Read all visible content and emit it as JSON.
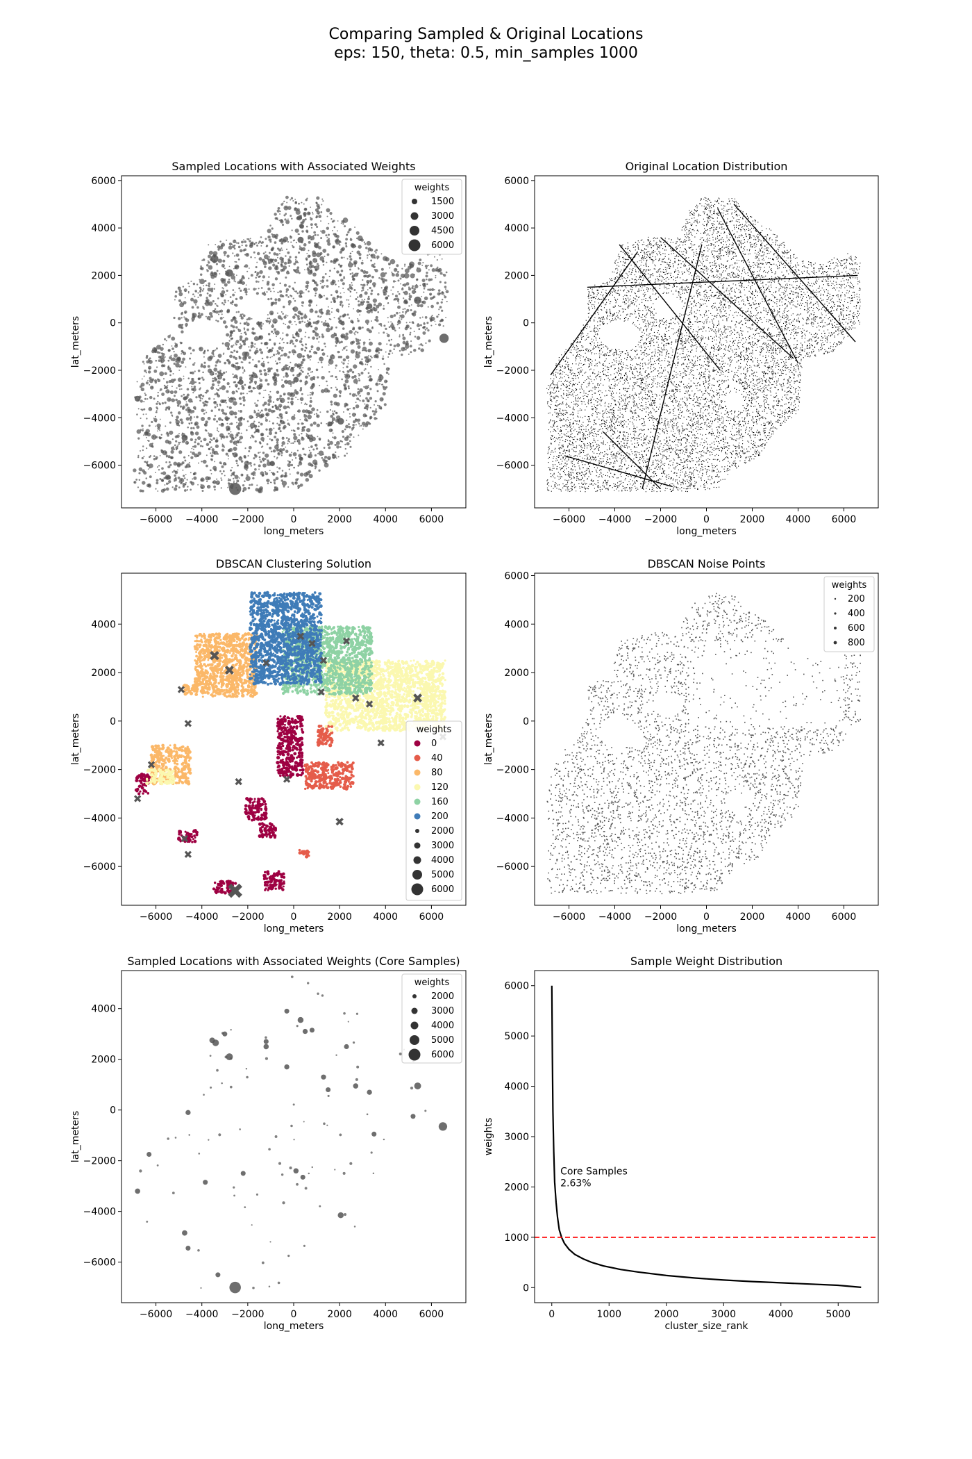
{
  "figure": {
    "title_line1": "Comparing Sampled & Original Locations",
    "title_line2": "eps: 150, theta: 0.5, min_samples 1000"
  },
  "chart_data": [
    {
      "id": "sampled",
      "type": "scatter",
      "title": "Sampled Locations with Associated Weights",
      "xlabel": "long_meters",
      "ylabel": "lat_meters",
      "xlim": [
        -7500,
        7500
      ],
      "ylim": [
        -7800,
        6200
      ],
      "xticks": [
        -6000,
        -4000,
        -2000,
        0,
        2000,
        4000,
        6000
      ],
      "yticks": [
        -6000,
        -4000,
        -2000,
        0,
        2000,
        4000,
        6000
      ],
      "legend": {
        "title": "weights",
        "position": "top-right",
        "labels": [
          "1500",
          "3000",
          "4500",
          "6000"
        ]
      },
      "color": "#555555",
      "highlight_points": [
        {
          "x": -2550,
          "y": -7000,
          "w": 6000
        },
        {
          "x": 6550,
          "y": -650,
          "w": 4200
        },
        {
          "x": -3450,
          "y": 2700,
          "w": 3300
        },
        {
          "x": -2800,
          "y": 2100,
          "w": 3000
        },
        {
          "x": 5400,
          "y": 950,
          "w": 3000
        },
        {
          "x": 2050,
          "y": -4150,
          "w": 2500
        },
        {
          "x": -4750,
          "y": -4850,
          "w": 2200
        },
        {
          "x": -6800,
          "y": -3200,
          "w": 2000
        },
        {
          "x": 300,
          "y": 3500,
          "w": 2200
        },
        {
          "x": 3300,
          "y": 700,
          "w": 2000
        },
        {
          "x": 100,
          "y": -2400,
          "w": 1800
        },
        {
          "x": -2300,
          "y": -2500,
          "w": 1600
        }
      ]
    },
    {
      "id": "original",
      "type": "scatter",
      "title": "Original Location Distribution",
      "xlabel": "long_meters",
      "ylabel": "lat_meters",
      "xlim": [
        -7500,
        7500
      ],
      "ylim": [
        -7800,
        6200
      ],
      "xticks": [
        -6000,
        -4000,
        -2000,
        0,
        2000,
        4000,
        6000
      ],
      "yticks": [
        -6000,
        -4000,
        -2000,
        0,
        2000,
        4000,
        6000
      ],
      "color": "#000000"
    },
    {
      "id": "dbscan",
      "type": "scatter",
      "title": "DBSCAN Clustering Solution",
      "xlabel": "long_meters",
      "ylabel": "lat_meters",
      "xlim": [
        -7500,
        7500
      ],
      "ylim": [
        -7600,
        6100
      ],
      "xticks": [
        -6000,
        -4000,
        -2000,
        0,
        2000,
        4000,
        6000
      ],
      "yticks": [
        -6000,
        -4000,
        -2000,
        0,
        2000,
        4000
      ],
      "legend": {
        "title": "weights",
        "position": "right",
        "hue_labels": [
          "0",
          "40",
          "80",
          "120",
          "160",
          "200"
        ],
        "hue_colors": [
          "#9e0142",
          "#e55c4a",
          "#fbb869",
          "#fbf8b0",
          "#8ed2a4",
          "#3f7cb8"
        ],
        "size_labels": [
          "2000",
          "3000",
          "4000",
          "5000",
          "6000"
        ]
      },
      "clusters": [
        {
          "label": 0,
          "color": "#9e0142",
          "regions": [
            [
              -700,
              400,
              -2300,
              200
            ],
            [
              -2100,
              -1200,
              -4100,
              -3200
            ],
            [
              -1500,
              -700,
              -4800,
              -4200
            ],
            [
              -1300,
              -400,
              -7000,
              -6200
            ],
            [
              -3500,
              -2500,
              -7100,
              -6600
            ],
            [
              -5000,
              -4200,
              -5000,
              -4500
            ],
            [
              -6900,
              -6300,
              -3000,
              -2200
            ]
          ]
        },
        {
          "label": 40,
          "color": "#e55c4a",
          "regions": [
            [
              1000,
              1700,
              -1000,
              -200
            ],
            [
              500,
              2600,
              -2800,
              -1700
            ],
            [
              200,
              700,
              -5600,
              -5300
            ]
          ]
        },
        {
          "label": 80,
          "color": "#fbb869",
          "regions": [
            [
              -4300,
              -1600,
              1000,
              3600
            ],
            [
              -6200,
              -4500,
              -2600,
              -1000
            ],
            [
              -4800,
              -4300,
              1100,
              1500
            ]
          ]
        },
        {
          "label": 120,
          "color": "#fbf8b0",
          "regions": [
            [
              1400,
              6600,
              -400,
              2500
            ],
            [
              -6400,
              -5200,
              -2600,
              -2000
            ]
          ]
        },
        {
          "label": 160,
          "color": "#8ed2a4",
          "regions": [
            [
              -500,
              3400,
              1100,
              3900
            ]
          ]
        },
        {
          "label": 200,
          "color": "#3f7cb8",
          "regions": [
            [
              -1900,
              1200,
              1500,
              5300
            ]
          ]
        }
      ],
      "core_samples": [
        {
          "x": -2550,
          "y": -7000,
          "w": 6000
        },
        {
          "x": 5400,
          "y": 950,
          "w": 3000
        },
        {
          "x": -3450,
          "y": 2700,
          "w": 3300
        },
        {
          "x": -2800,
          "y": 2100,
          "w": 3000
        },
        {
          "x": 2000,
          "y": -4150,
          "w": 2400
        },
        {
          "x": 2700,
          "y": 950,
          "w": 2200
        },
        {
          "x": 300,
          "y": 3500,
          "w": 2200
        },
        {
          "x": 1300,
          "y": 2500,
          "w": 2000
        },
        {
          "x": 3300,
          "y": 700,
          "w": 2000
        },
        {
          "x": -6800,
          "y": -3200,
          "w": 2000
        },
        {
          "x": -4750,
          "y": -4850,
          "w": 2000
        },
        {
          "x": 1200,
          "y": 1200,
          "w": 2000
        },
        {
          "x": -1200,
          "y": 2400,
          "w": 2000
        },
        {
          "x": 800,
          "y": 3200,
          "w": 2000
        },
        {
          "x": -300,
          "y": -2400,
          "w": 2000
        },
        {
          "x": -2400,
          "y": -2500,
          "w": 2000
        },
        {
          "x": -4600,
          "y": -5500,
          "w": 2000
        },
        {
          "x": -4600,
          "y": -100,
          "w": 2000
        },
        {
          "x": -6200,
          "y": -1800,
          "w": 2000
        },
        {
          "x": -4900,
          "y": 1300,
          "w": 2000
        },
        {
          "x": 3800,
          "y": -900,
          "w": 2000
        },
        {
          "x": 2300,
          "y": 3300,
          "w": 2000
        },
        {
          "x": 6500,
          "y": -650,
          "w": 2000
        }
      ]
    },
    {
      "id": "noise",
      "type": "scatter",
      "title": "DBSCAN Noise Points",
      "xlabel": "long_meters",
      "ylabel": "lat_meters",
      "xlim": [
        -7500,
        7500
      ],
      "ylim": [
        -7600,
        6100
      ],
      "xticks": [
        -6000,
        -4000,
        -2000,
        0,
        2000,
        4000,
        6000
      ],
      "yticks": [
        -6000,
        -4000,
        -2000,
        0,
        2000,
        4000,
        6000
      ],
      "legend": {
        "title": "weights",
        "position": "top-right",
        "labels": [
          "200",
          "400",
          "600",
          "800"
        ]
      },
      "color": "#555555"
    },
    {
      "id": "core",
      "type": "scatter",
      "title": "Sampled Locations with Associated Weights (Core Samples)",
      "xlabel": "long_meters",
      "ylabel": "lat_meters",
      "xlim": [
        -7500,
        7500
      ],
      "ylim": [
        -7600,
        5500
      ],
      "xticks": [
        -6000,
        -4000,
        -2000,
        0,
        2000,
        4000,
        6000
      ],
      "yticks": [
        -6000,
        -4000,
        -2000,
        0,
        2000,
        4000
      ],
      "legend": {
        "title": "weights",
        "position": "top-right",
        "labels": [
          "2000",
          "3000",
          "4000",
          "5000",
          "6000"
        ]
      },
      "color": "#555555",
      "points": [
        {
          "x": -2550,
          "y": -7000,
          "w": 6000
        },
        {
          "x": 6500,
          "y": -650,
          "w": 4200
        },
        {
          "x": 5400,
          "y": 950,
          "w": 3200
        },
        {
          "x": -2800,
          "y": 2100,
          "w": 3200
        },
        {
          "x": -3400,
          "y": 2650,
          "w": 3000
        },
        {
          "x": 300,
          "y": 3550,
          "w": 2600
        },
        {
          "x": 2050,
          "y": -4150,
          "w": 2600
        },
        {
          "x": -3550,
          "y": 2750,
          "w": 2400
        },
        {
          "x": -4750,
          "y": -4850,
          "w": 2300
        },
        {
          "x": -6800,
          "y": -3200,
          "w": 2200
        },
        {
          "x": 2700,
          "y": 950,
          "w": 2200
        },
        {
          "x": 3300,
          "y": 700,
          "w": 2100
        },
        {
          "x": -1200,
          "y": 2500,
          "w": 2200
        },
        {
          "x": 100,
          "y": -2400,
          "w": 2200
        },
        {
          "x": 500,
          "y": 3100,
          "w": 2100
        },
        {
          "x": -4600,
          "y": -100,
          "w": 2100
        },
        {
          "x": -6300,
          "y": -1750,
          "w": 2000
        },
        {
          "x": 1300,
          "y": 1300,
          "w": 2100
        },
        {
          "x": -300,
          "y": 1700,
          "w": 2100
        },
        {
          "x": -2200,
          "y": -2500,
          "w": 2000
        },
        {
          "x": 1500,
          "y": 800,
          "w": 2000
        },
        {
          "x": 5200,
          "y": -250,
          "w": 2000
        },
        {
          "x": -300,
          "y": 3900,
          "w": 2000
        },
        {
          "x": 800,
          "y": 3150,
          "w": 2000
        },
        {
          "x": 2300,
          "y": 2500,
          "w": 2000
        },
        {
          "x": -3000,
          "y": 3000,
          "w": 2000
        },
        {
          "x": 3500,
          "y": -950,
          "w": 2000
        },
        {
          "x": 400,
          "y": -2650,
          "w": 2000
        },
        {
          "x": -1200,
          "y": 2700,
          "w": 2000
        },
        {
          "x": -4600,
          "y": -5450,
          "w": 2000
        },
        {
          "x": -3850,
          "y": -2850,
          "w": 2000
        },
        {
          "x": -3300,
          "y": -6500,
          "w": 2000
        }
      ]
    },
    {
      "id": "weights",
      "type": "line",
      "title": "Sample Weight Distribution",
      "xlabel": "cluster_size_rank",
      "ylabel": "weights",
      "xlim": [
        -300,
        5700
      ],
      "ylim": [
        -300,
        6300
      ],
      "xticks": [
        0,
        1000,
        2000,
        3000,
        4000,
        5000
      ],
      "yticks": [
        0,
        1000,
        2000,
        3000,
        4000,
        5000,
        6000
      ],
      "threshold": {
        "y": 1000,
        "color": "#ff0000"
      },
      "annotation_line1": "Core Samples",
      "annotation_line2": "2.63%",
      "annotation_pos": {
        "x": 150,
        "y": 2250
      },
      "x": [
        0,
        10,
        20,
        35,
        50,
        75,
        100,
        130,
        170,
        220,
        300,
        400,
        550,
        700,
        900,
        1200,
        1500,
        2000,
        2500,
        3000,
        3500,
        4000,
        4500,
        5000,
        5400
      ],
      "y": [
        6000,
        4600,
        3500,
        2700,
        2100,
        1700,
        1400,
        1150,
        1000,
        880,
        760,
        660,
        570,
        500,
        430,
        360,
        310,
        240,
        190,
        150,
        120,
        95,
        70,
        45,
        5
      ]
    }
  ]
}
